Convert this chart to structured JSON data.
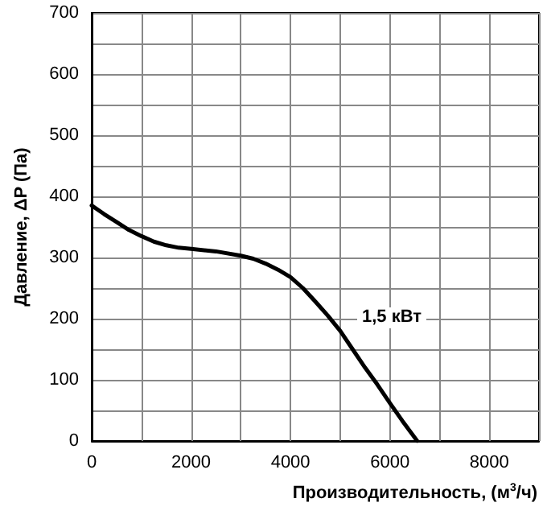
{
  "chart_data": {
    "type": "line",
    "xlabel": "Производительность, (м$^{3}$/ч)",
    "ylabel": "Давление, ΔP (Па)",
    "x": [
      0,
      250,
      500,
      750,
      1000,
      1250,
      1500,
      1750,
      2000,
      2500,
      3000,
      3250,
      3500,
      3750,
      4000,
      4250,
      4500,
      4750,
      5000,
      5250,
      5500,
      5750,
      6000,
      6250,
      6550
    ],
    "series": [
      {
        "color": "#000000",
        "values": [
          385,
          371,
          358,
          345,
          335,
          326,
          320,
          316,
          314,
          310,
          303,
          298,
          290,
          280,
          268,
          250,
          228,
          205,
          180,
          150,
          120,
          92,
          62,
          33,
          0
        ]
      }
    ],
    "annotations": [
      "1,5 кВт"
    ],
    "xlim": [
      0,
      9000
    ],
    "xticks": [
      0,
      {
        "value": 1000,
        "label": null
      },
      2000,
      {
        "value": 3000,
        "label": null
      },
      4000,
      {
        "value": 5000,
        "label": null
      },
      6000,
      {
        "value": 7000,
        "label": null
      },
      8000,
      {
        "value": 9000,
        "label": null
      }
    ],
    "ylim": [
      0,
      700
    ],
    "yticks": [
      0,
      {
        "value": 50,
        "label": null
      },
      100,
      {
        "value": 150,
        "label": null
      },
      200,
      {
        "value": 250,
        "label": null
      },
      300,
      {
        "value": 350,
        "label": null
      },
      400,
      {
        "value": 450,
        "label": null
      },
      500,
      {
        "value": 550,
        "label": null
      },
      600,
      {
        "value": 650,
        "label": null
      },
      700
    ],
    "grid": true,
    "marker": "none",
    "line_style": "solid"
  }
}
